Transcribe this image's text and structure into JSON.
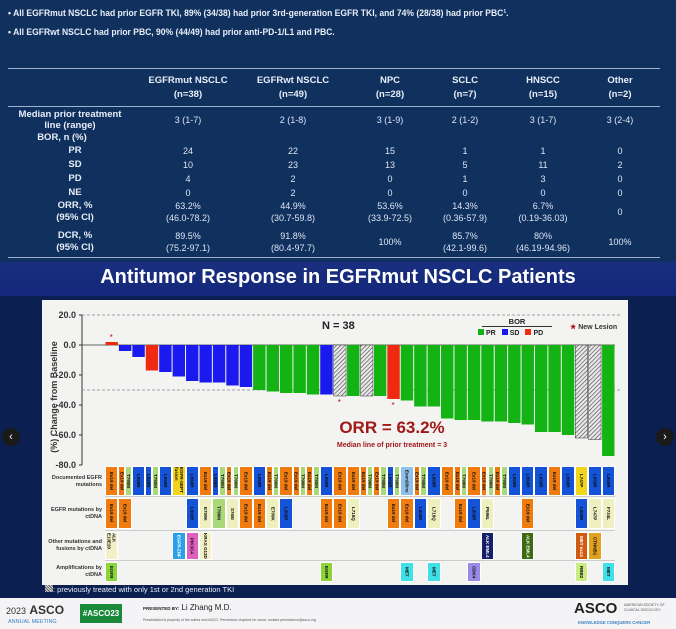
{
  "bullets": [
    "All EGFRmut NSCLC had prior EGFR TKI, 89% (34/38) had prior 3rd-generation EGFR TKI, and 74% (28/38) had prior PBC¹.",
    "All EGFRwt NSCLC had prior PBC, 90% (44/49) had prior anti-PD-1/L1 and PBC."
  ],
  "table": {
    "columns": [
      {
        "name": "EGFRmut NSCLC",
        "n": "(n=38)"
      },
      {
        "name": "EGFRwt NSCLC",
        "n": "(n=49)"
      },
      {
        "name": "NPC",
        "n": "(n=28)"
      },
      {
        "name": "SCLC",
        "n": "(n=7)"
      },
      {
        "name": "HNSCC",
        "n": "(n=15)"
      },
      {
        "name": "Other",
        "n": "(n=2)"
      }
    ],
    "median_label": [
      "Median prior treatment",
      "line (range)"
    ],
    "median": [
      "3 (1-7)",
      "2 (1-8)",
      "3 (1-9)",
      "2 (1-2)",
      "3 (1-7)",
      "3 (2-4)"
    ],
    "bor_label": "BOR,  n (%)",
    "rows": [
      {
        "label": "PR",
        "values": [
          "24",
          "22",
          "15",
          "1",
          "1",
          "0"
        ]
      },
      {
        "label": "SD",
        "values": [
          "10",
          "23",
          "13",
          "5",
          "11",
          "2"
        ]
      },
      {
        "label": "PD",
        "values": [
          "4",
          "2",
          "0",
          "1",
          "3",
          "0"
        ]
      },
      {
        "label": "NE",
        "values": [
          "0",
          "2",
          "0",
          "0",
          "0",
          "0"
        ]
      }
    ],
    "orr_label": [
      "ORR, %",
      "(95% CI)"
    ],
    "orr": [
      [
        "63.2%",
        "(46.0-78.2)"
      ],
      [
        "44.9%",
        "(30.7-59.8)"
      ],
      [
        "53.6%",
        "(33.9-72.5)"
      ],
      [
        "14.3%",
        "(0.36-57.9)"
      ],
      [
        "6.7%",
        "(0.19-36.03)"
      ],
      [
        "0",
        ""
      ]
    ],
    "dcr_label": [
      "DCR, %",
      "(95% CI)"
    ],
    "dcr": [
      [
        "89.5%",
        "(75.2-97.1)"
      ],
      [
        "91.8%",
        "(80.4-97.7)"
      ],
      [
        "100%",
        ""
      ],
      [
        "85.7%",
        "(42.1-99.6)"
      ],
      [
        "80%",
        "(46.19-94.96)"
      ],
      [
        "100%",
        ""
      ]
    ]
  },
  "slide_title": "Antitumor Response in EGFRmut NSCLC Patients",
  "chart_data": {
    "type": "bar",
    "title": "N = 38",
    "ylabel": "(%) Change from Baseline",
    "ylim": [
      -80,
      20
    ],
    "yticks": [
      "20.0",
      "0.0",
      "-20.0",
      "-40.0",
      "-60.0",
      "-80.0"
    ],
    "ytick_values": [
      20,
      0,
      -20,
      -40,
      -60,
      -80
    ],
    "reference_lines": [
      20,
      -30
    ],
    "legend": {
      "title": "BOR",
      "items": [
        {
          "label": "PR",
          "color": "#13b313"
        },
        {
          "label": "SD",
          "color": "#1a1aee"
        },
        {
          "label": "PD",
          "color": "#f02a10"
        }
      ],
      "new_lesion": "New Lesion",
      "placement": "top-right"
    },
    "values": [
      2,
      -4,
      -8,
      -17,
      -18,
      -21,
      -24,
      -25,
      -25,
      -27,
      -28,
      -30,
      -31,
      -32,
      -32,
      -33,
      -33,
      -34,
      -34,
      -34,
      -34,
      -36,
      -37,
      -41,
      -41,
      -49,
      -50,
      -50,
      -51,
      -51,
      -52,
      -53,
      -58,
      -58,
      -60,
      -62,
      -63,
      -74
    ],
    "bor": [
      "PD",
      "SD",
      "SD",
      "PD",
      "SD",
      "SD",
      "SD",
      "SD",
      "SD",
      "SD",
      "SD",
      "PR",
      "PR",
      "PR",
      "PR",
      "PR",
      "SD",
      "PD",
      "PR",
      "PR",
      "PR",
      "PD",
      "PR",
      "PR",
      "PR",
      "PR",
      "PR",
      "PR",
      "PR",
      "PR",
      "PR",
      "PR",
      "PR",
      "PR",
      "PR",
      "PR",
      "PR",
      "PR"
    ],
    "hatched": [
      18,
      20,
      36,
      37
    ],
    "new_lesion": [
      1,
      18,
      22
    ],
    "orr_text": "ORR = 63.2%",
    "median_text": "Median line of prior treatment = 3",
    "row_labels": [
      "Documented EGFR mutations",
      "EGFR mutations by ctDNA",
      "Other mutations and fusions by ctDNA",
      "Amplifications by ctDNA"
    ],
    "documented": [
      [
        "Ex19 del"
      ],
      [
        "Ex19 del",
        "T790M"
      ],
      [
        "L858R"
      ],
      [
        "L858R",
        "T790M"
      ],
      [
        "L858R"
      ],
      [
        "EGFR-SEPT fusion"
      ],
      [
        "L858R"
      ],
      [
        "Ex19 del"
      ],
      [
        "L858R",
        "T790M"
      ],
      [
        "Ex19 del",
        "T790M"
      ],
      [
        "Ex19 del"
      ],
      [
        "L858R"
      ],
      [
        "Ex19 del",
        "T790M"
      ],
      [
        "Ex19 del"
      ],
      [
        "Ex19 del",
        "T790M"
      ],
      [
        "Ex19 del",
        "T790M"
      ],
      [
        "L858R"
      ],
      [
        "Ex19 del"
      ],
      [
        "Ex19 del"
      ],
      [
        "Ex19 del",
        "T790M"
      ],
      [
        "Ex19 del",
        "T790M"
      ],
      [
        "L858R",
        "T790M"
      ],
      [
        "Exon20ins"
      ],
      [
        "Ex19 del",
        "T790M"
      ],
      [
        "L858R"
      ],
      [
        "Ex19 del"
      ],
      [
        "Ex19 del",
        "T790M"
      ],
      [
        "Ex19 del"
      ],
      [
        "Ex19 del",
        "T790M"
      ],
      [
        "Ex19 del",
        "T790M"
      ],
      [
        "L858R"
      ],
      [
        "L858R"
      ],
      [
        "L858R"
      ],
      [
        "Ex19 del"
      ],
      [
        "L858R"
      ],
      [
        "L747P"
      ],
      [
        "L858R"
      ],
      [
        "L858R"
      ]
    ],
    "ctdna": [
      [
        1,
        "Ex19 del"
      ],
      [
        2,
        "Ex19 del"
      ],
      [
        7,
        "L858R"
      ],
      [
        8,
        "E709K"
      ],
      [
        9,
        "T790M"
      ],
      [
        10,
        "S768I"
      ],
      [
        11,
        "Ex19 del"
      ],
      [
        12,
        "Ex19 del"
      ],
      [
        13,
        "E709K"
      ],
      [
        14,
        "L858R"
      ],
      [
        17,
        "Ex19 del"
      ],
      [
        18,
        "Ex19 del"
      ],
      [
        19,
        "L718Q"
      ],
      [
        22,
        "Ex19 del"
      ],
      [
        23,
        "Ex19 del"
      ],
      [
        24,
        "L858R"
      ],
      [
        25,
        "L718Q"
      ],
      [
        27,
        "Ex19 del"
      ],
      [
        28,
        "L858R"
      ],
      [
        29,
        "P596L"
      ],
      [
        32,
        "Ex19 del"
      ],
      [
        36,
        "L858R"
      ],
      [
        37,
        "L747P"
      ],
      [
        38,
        "F734L"
      ]
    ],
    "other": [
      [
        1,
        "ALK E13E20"
      ],
      [
        6,
        "EGFR-ZNF"
      ],
      [
        7,
        "PIK3CA"
      ],
      [
        8,
        "KRAS G12D"
      ],
      [
        29,
        "ALK EML4"
      ],
      [
        32,
        "ALK EML4"
      ],
      [
        36,
        "MET ex14"
      ],
      [
        37,
        "CTNNB1"
      ]
    ],
    "amplifications": [
      [
        1,
        "EGFR"
      ],
      [
        17,
        "EGFR"
      ],
      [
        23,
        "MET"
      ],
      [
        25,
        "MET"
      ],
      [
        28,
        "CDK4"
      ],
      [
        36,
        "RBB2"
      ],
      [
        38,
        "MET"
      ]
    ],
    "hatch_caption": ": previously treated with only 1st or 2nd generation TKI"
  },
  "colors": {
    "PR": "#13b313",
    "SD": "#1a1aee",
    "PD": "#f02a10",
    "Ex19 del": "#f07c10",
    "L858R": "#1452d8",
    "T790M": "#a8d878",
    "other": "#f2d41a",
    "accent_red": "#a01818"
  },
  "footer": {
    "year": "2023",
    "asco": "ASCO",
    "meeting": "ANNUAL MEETING",
    "hashtag": "#ASCO23",
    "presented_by": "PRESENTED BY:",
    "presenter": "Li Zhang M.D.",
    "disclaimer": "Presentation is property of the author and ASCO. Permission required for reuse; contact permissions@asco.org",
    "logo": "ASCO",
    "society": "AMERICAN SOCIETY OF CLINICAL ONCOLOGY",
    "tagline": "KNOWLEDGE CONQUERS CANCER"
  },
  "nav": {
    "prev": "‹",
    "next": "›"
  }
}
